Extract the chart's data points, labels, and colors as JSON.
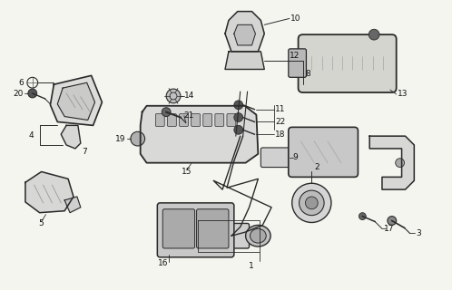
{
  "bg_color": "#f5f5f0",
  "line_color": "#2a2a2a",
  "fig_width": 4.98,
  "fig_height": 3.2,
  "dpi": 100
}
